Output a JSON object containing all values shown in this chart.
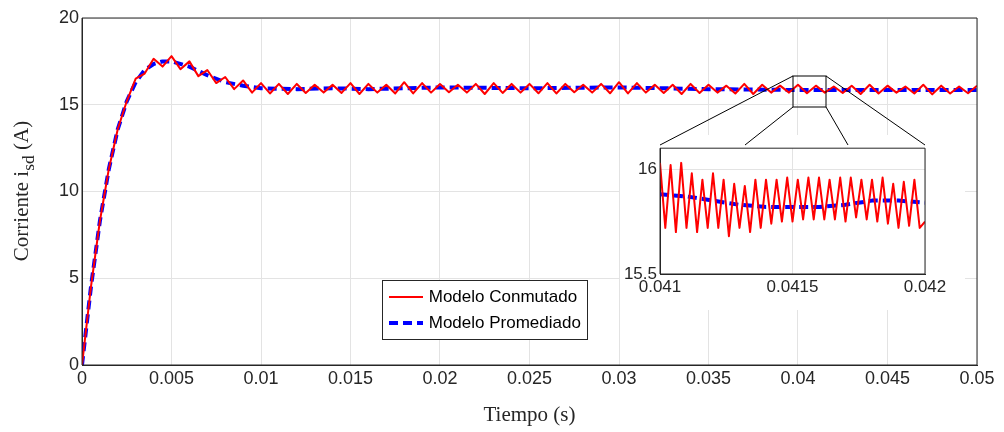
{
  "chart_data": [
    {
      "type": "line",
      "xlabel": "Tiempo (s)",
      "ylabel": "Corriente i$_{sd}$ (A)",
      "xlim": [
        0,
        0.05
      ],
      "xticks": [
        0,
        0.005,
        0.01,
        0.015,
        0.02,
        0.025,
        0.03,
        0.035,
        0.04,
        0.045,
        0.05
      ],
      "ylim": [
        0,
        20
      ],
      "yticks": [
        0,
        5,
        10,
        15,
        20
      ],
      "grid": true,
      "legend": "bottom",
      "marker": "none",
      "series": [
        {
          "name": "Modelo Conmutado",
          "color": "#ff0000",
          "line_style": "solid",
          "x": [
            0,
            0.0005,
            0.001,
            0.0015,
            0.002,
            0.0025,
            0.003,
            0.0035,
            0.004,
            0.0045,
            0.005,
            0.0055,
            0.006,
            0.0065,
            0.007,
            0.0075,
            0.008,
            0.0085,
            0.009,
            0.0095,
            0.01,
            0.0105,
            0.011,
            0.0115,
            0.012,
            0.0125,
            0.013,
            0.0135,
            0.014,
            0.0145,
            0.015,
            0.0155,
            0.016,
            0.0165,
            0.017,
            0.0175,
            0.018,
            0.0185,
            0.019,
            0.0195,
            0.02,
            0.0205,
            0.021,
            0.0215,
            0.022,
            0.0225,
            0.023,
            0.0235,
            0.024,
            0.0245,
            0.025,
            0.0255,
            0.026,
            0.0265,
            0.027,
            0.0275,
            0.028,
            0.0285,
            0.029,
            0.0295,
            0.03,
            0.0305,
            0.031,
            0.0315,
            0.032,
            0.0325,
            0.033,
            0.0335,
            0.034,
            0.0345,
            0.035,
            0.0355,
            0.036,
            0.0365,
            0.037,
            0.0375,
            0.038,
            0.0385,
            0.039,
            0.0395,
            0.04,
            0.0405,
            0.041,
            0.0415,
            0.042,
            0.0425,
            0.043,
            0.0435,
            0.044,
            0.0445,
            0.045,
            0.0455,
            0.046,
            0.0465,
            0.047,
            0.0475,
            0.048,
            0.0485,
            0.049,
            0.0495,
            0.05
          ],
          "values": [
            0,
            4.5,
            8.3,
            11.3,
            13.6,
            15.2,
            16.5,
            16.8,
            17.65,
            17.2,
            17.8,
            17.05,
            17.5,
            16.65,
            17.0,
            16.25,
            16.6,
            15.9,
            16.4,
            15.7,
            16.25,
            15.65,
            16.2,
            15.62,
            16.2,
            15.68,
            16.15,
            15.7,
            16.15,
            15.68,
            16.25,
            15.62,
            16.2,
            15.7,
            16.15,
            15.65,
            16.3,
            15.65,
            16.25,
            15.7,
            16.2,
            15.72,
            16.15,
            15.7,
            16.2,
            15.62,
            16.25,
            15.68,
            16.2,
            15.7,
            16.2,
            15.66,
            16.25,
            15.65,
            16.2,
            15.72,
            16.15,
            15.7,
            16.2,
            15.66,
            16.3,
            15.65,
            16.25,
            15.7,
            16.15,
            15.68,
            16.15,
            15.62,
            16.2,
            15.68,
            16.15,
            15.7,
            16.1,
            15.65,
            16.2,
            15.62,
            16.15,
            15.7,
            16.1,
            15.7,
            16.15,
            15.66,
            16.1,
            15.7,
            16.05,
            15.68,
            16.1,
            15.62,
            16.15,
            15.65,
            16.1,
            15.7,
            16.05,
            15.65,
            16.15,
            15.6,
            16.1,
            15.65,
            16.05,
            15.66,
            16.1
          ]
        },
        {
          "name": "Modelo Promediado",
          "color": "#0000ff",
          "line_style": "dashed",
          "x": [
            0,
            0.0005,
            0.001,
            0.0015,
            0.002,
            0.0025,
            0.003,
            0.0035,
            0.004,
            0.0045,
            0.005,
            0.006,
            0.007,
            0.008,
            0.009,
            0.01,
            0.012,
            0.014,
            0.016,
            0.018,
            0.02,
            0.025,
            0.03,
            0.035,
            0.04,
            0.045,
            0.05
          ],
          "values": [
            0,
            4.5,
            8.3,
            11.3,
            13.6,
            15.2,
            16.3,
            17.0,
            17.35,
            17.5,
            17.5,
            17.2,
            16.7,
            16.3,
            16.1,
            15.95,
            15.9,
            15.95,
            15.9,
            15.95,
            16.0,
            15.95,
            16.0,
            15.9,
            15.85,
            15.85,
            15.85
          ]
        }
      ]
    },
    {
      "type": "line",
      "xlim": [
        0.041,
        0.042
      ],
      "xticks": [
        0.041,
        0.0415,
        0.042
      ],
      "ylim": [
        15.5,
        16.1
      ],
      "yticks": [
        15.5,
        16
      ],
      "grid": true,
      "marker": "none",
      "series": [
        {
          "color": "#ff0000",
          "line_style": "solid",
          "x": [
            0.041,
            0.04102,
            0.04104,
            0.04106,
            0.04108,
            0.0411,
            0.04112,
            0.04114,
            0.04116,
            0.04118,
            0.0412,
            0.04122,
            0.04124,
            0.04126,
            0.04128,
            0.0413,
            0.04132,
            0.04134,
            0.04136,
            0.04138,
            0.0414,
            0.04142,
            0.04144,
            0.04146,
            0.04148,
            0.0415,
            0.04152,
            0.04154,
            0.04156,
            0.04158,
            0.0416,
            0.04162,
            0.04164,
            0.04166,
            0.04168,
            0.0417,
            0.04172,
            0.04174,
            0.04176,
            0.04178,
            0.0418,
            0.04182,
            0.04184,
            0.04186,
            0.04188,
            0.0419,
            0.04192,
            0.04194,
            0.04196,
            0.04198,
            0.042
          ],
          "values": [
            16.03,
            15.72,
            16.02,
            15.7,
            16.03,
            15.72,
            15.98,
            15.7,
            15.95,
            15.72,
            15.98,
            15.72,
            15.95,
            15.68,
            15.93,
            15.72,
            15.92,
            15.7,
            15.95,
            15.72,
            15.95,
            15.74,
            15.95,
            15.75,
            15.96,
            15.75,
            15.95,
            15.76,
            15.96,
            15.76,
            15.96,
            15.76,
            15.95,
            15.76,
            15.96,
            15.75,
            15.96,
            15.77,
            15.95,
            15.76,
            15.95,
            15.75,
            15.96,
            15.74,
            15.93,
            15.72,
            15.94,
            15.73,
            15.95,
            15.72,
            15.75
          ]
        },
        {
          "color": "#0000ff",
          "line_style": "dashed",
          "x": [
            0.041,
            0.0411,
            0.0412,
            0.0413,
            0.0414,
            0.0415,
            0.0416,
            0.0417,
            0.0418,
            0.0419,
            0.042
          ],
          "values": [
            15.88,
            15.87,
            15.85,
            15.83,
            15.82,
            15.82,
            15.82,
            15.83,
            15.85,
            15.85,
            15.84
          ]
        }
      ]
    }
  ]
}
